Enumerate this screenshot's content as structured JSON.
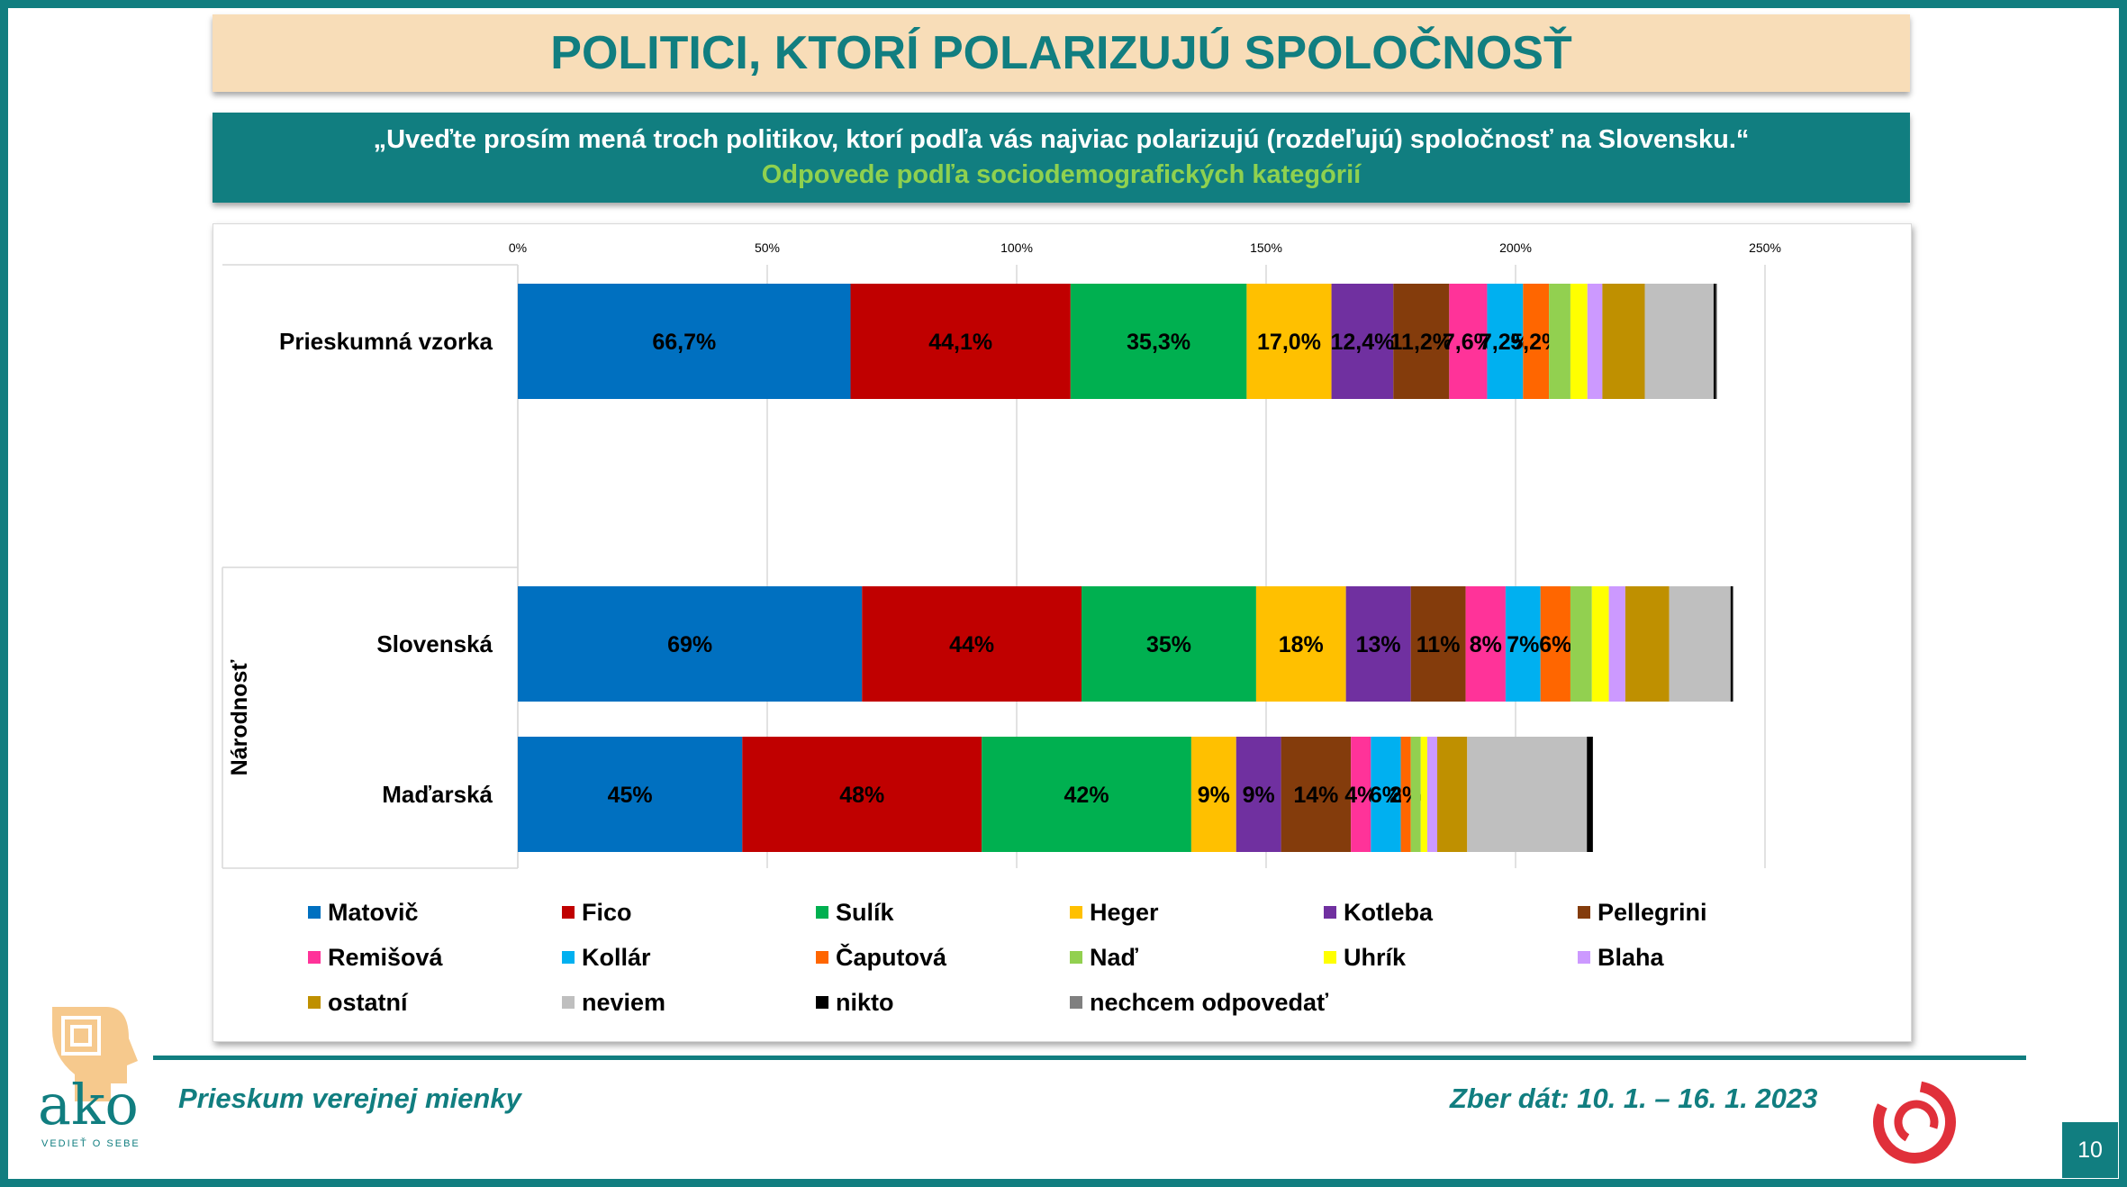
{
  "header": {
    "title": "POLITICI, KTORÍ POLARIZUJÚ SPOLOČNOSŤ",
    "question": "„Uveďte prosím mená troch politikov, ktorí podľa vás najviac polarizujú (rozdeľujú) spoločnosť na Slovensku.“",
    "subtitle": "Odpovede podľa sociodemografických kategórií"
  },
  "footer": {
    "left": "Prieskum verejnej mienky",
    "right": "Zber dát: 10. 1. – 16. 1. 2023",
    "page": "10",
    "logo_text": "ako",
    "logo_tagline": "VEDIEŤ O SEBE"
  },
  "chart_data": {
    "type": "bar",
    "orientation": "horizontal",
    "stacked": true,
    "xlim": [
      0,
      250
    ],
    "x_ticks": [
      "0%",
      "50%",
      "100%",
      "150%",
      "200%",
      "250%"
    ],
    "grid": true,
    "legend_position": "bottom",
    "group_label": "Národnosť",
    "categories": [
      "Prieskumná vzorka",
      "Slovenská",
      "Maďarská"
    ],
    "series": [
      {
        "name": "Matovič",
        "color": "#0070c0",
        "values": [
          66.7,
          69,
          45
        ],
        "labels": [
          "66,7%",
          "69%",
          "45%"
        ]
      },
      {
        "name": "Fico",
        "color": "#c00000",
        "values": [
          44.1,
          44,
          48
        ],
        "labels": [
          "44,1%",
          "44%",
          "48%"
        ]
      },
      {
        "name": "Sulík",
        "color": "#00b050",
        "values": [
          35.3,
          35,
          42
        ],
        "labels": [
          "35,3%",
          "35%",
          "42%"
        ]
      },
      {
        "name": "Heger",
        "color": "#ffc000",
        "values": [
          17.0,
          18,
          9
        ],
        "labels": [
          "17,0%",
          "18%",
          "9%"
        ]
      },
      {
        "name": "Kotleba",
        "color": "#7030a0",
        "values": [
          12.4,
          13,
          9
        ],
        "labels": [
          "12,4%",
          "13%",
          "9%"
        ]
      },
      {
        "name": "Pellegrini",
        "color": "#843c0c",
        "values": [
          11.2,
          11,
          14
        ],
        "labels": [
          "11,2%",
          "11%",
          "14%"
        ]
      },
      {
        "name": "Remišová",
        "color": "#ff3399",
        "values": [
          7.6,
          8,
          4
        ],
        "labels": [
          "7,6%",
          "8%",
          "4%"
        ]
      },
      {
        "name": "Kollár",
        "color": "#00b0f0",
        "values": [
          7.2,
          7,
          6
        ],
        "labels": [
          "7,2%",
          "7%",
          "6%"
        ]
      },
      {
        "name": "Čaputová",
        "color": "#ff6600",
        "values": [
          5.2,
          6,
          2
        ],
        "labels": [
          "5,2%",
          "6%",
          "2%"
        ]
      },
      {
        "name": "Naď",
        "color": "#92d050",
        "values": [
          4.3,
          4.3,
          2
        ],
        "labels": [
          "",
          "",
          ""
        ]
      },
      {
        "name": "Uhrík",
        "color": "#ffff00",
        "values": [
          3.4,
          3.4,
          1.3
        ],
        "labels": [
          "",
          "",
          ""
        ]
      },
      {
        "name": "Blaha",
        "color": "#cc99ff",
        "values": [
          3.0,
          3.3,
          2
        ],
        "labels": [
          "",
          "",
          ""
        ]
      },
      {
        "name": "ostatní",
        "color": "#bf9000",
        "values": [
          8.5,
          8.8,
          6
        ],
        "labels": [
          "",
          "",
          ""
        ]
      },
      {
        "name": "neviem",
        "color": "#bfbfbf",
        "values": [
          13.8,
          12.3,
          24
        ],
        "labels": [
          "",
          "",
          ""
        ]
      },
      {
        "name": "nikto",
        "color": "#000000",
        "values": [
          0.5,
          0.4,
          1.2
        ],
        "labels": [
          "",
          "",
          ""
        ]
      },
      {
        "name": "nechcem odpovedať",
        "color": "#808080",
        "values": [
          0.2,
          0.2,
          0
        ],
        "labels": [
          "",
          "",
          ""
        ]
      }
    ]
  }
}
